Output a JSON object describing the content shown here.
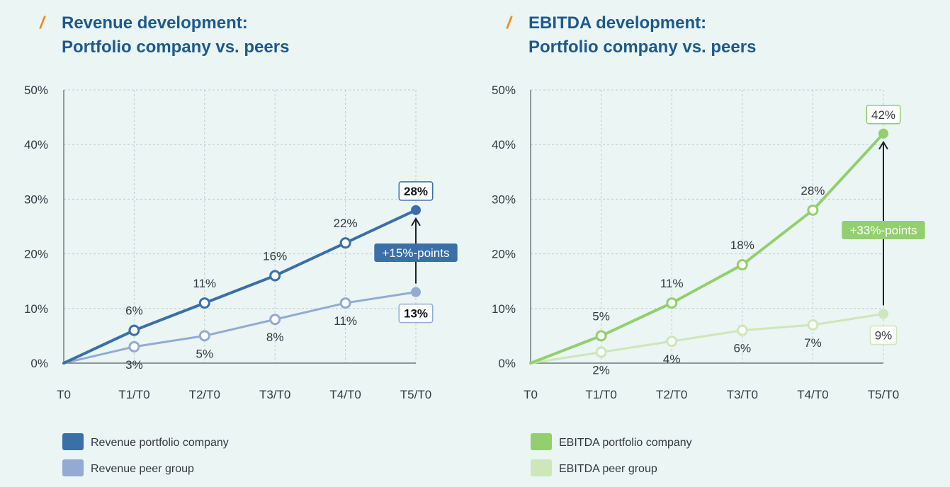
{
  "colors": {
    "background": "#eaf5f4",
    "title_slash": "#f08c1e",
    "title_text": "#1e5a8c",
    "grid": "#b9cfd0",
    "axis": "#555f66"
  },
  "chart_data": [
    {
      "type": "line",
      "title_slash": "/",
      "title": "Revenue development:",
      "subtitle": "Portfolio company vs. peers",
      "categories": [
        "T0",
        "T1/T0",
        "T2/T0",
        "T3/T0",
        "T4/T0",
        "T5/T0"
      ],
      "y_ticks": [
        "0%",
        "10%",
        "20%",
        "30%",
        "40%",
        "50%"
      ],
      "ylim": [
        0,
        50
      ],
      "grid": true,
      "legend_position": "bottom-left",
      "series": [
        {
          "name": "Revenue portfolio company",
          "color": "#3a6fa8",
          "values": [
            0,
            6,
            11,
            16,
            22,
            28
          ],
          "labels": [
            "",
            "6%",
            "11%",
            "16%",
            "22%",
            "28%"
          ],
          "label_side": "above",
          "last_label_boxed": true
        },
        {
          "name": "Revenue peer group",
          "color": "#93aad3",
          "values": [
            0,
            3,
            5,
            8,
            11,
            13
          ],
          "labels": [
            "",
            "3%",
            "5%",
            "8%",
            "11%",
            "13%"
          ],
          "label_side": "below",
          "last_label_boxed": true
        }
      ],
      "annotation": {
        "text": "+15%-points",
        "color": "#3a6fa8"
      }
    },
    {
      "type": "line",
      "title_slash": "/",
      "title": "EBITDA development:",
      "subtitle": "Portfolio company vs. peers",
      "categories": [
        "T0",
        "T1/T0",
        "T2/T0",
        "T3/T0",
        "T4/T0",
        "T5/T0"
      ],
      "y_ticks": [
        "0%",
        "10%",
        "20%",
        "30%",
        "40%",
        "50%"
      ],
      "ylim": [
        0,
        50
      ],
      "grid": true,
      "legend_position": "bottom-left",
      "series": [
        {
          "name": "EBITDA portfolio company",
          "color": "#92cf6e",
          "values": [
            0,
            5,
            11,
            18,
            28,
            42
          ],
          "labels": [
            "",
            "5%",
            "11%",
            "18%",
            "28%",
            "42%"
          ],
          "label_side": "above",
          "last_label_boxed": true
        },
        {
          "name": "EBITDA peer group",
          "color": "#cde7b8",
          "values": [
            0,
            2,
            4,
            6,
            7,
            9
          ],
          "labels": [
            "",
            "2%",
            "4%",
            "6%",
            "7%",
            "9%"
          ],
          "label_side": "below",
          "last_label_boxed": true
        }
      ],
      "annotation": {
        "text": "+33%-points",
        "color": "#92cf6e"
      }
    }
  ]
}
